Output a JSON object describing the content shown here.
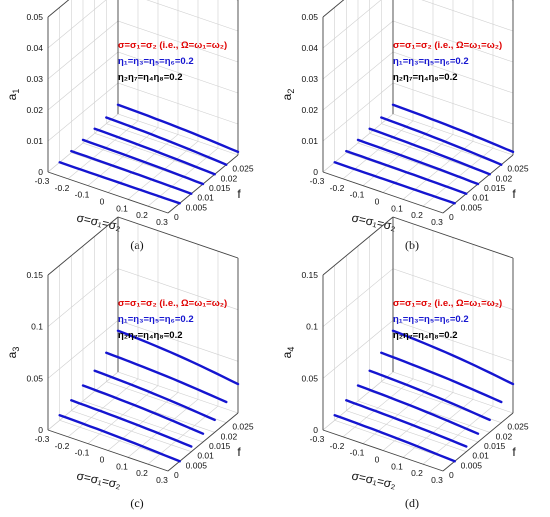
{
  "chart_data": [
    {
      "type": "line",
      "panel_label": "(a)",
      "zlabel": "a",
      "zlabel_sub": "1",
      "xlabel": "σ=σ₁=σ₂",
      "ylabel": "f",
      "xticks": [
        "-0.3",
        "-0.2",
        "-0.1",
        "0",
        "0.1",
        "0.2",
        "0.3"
      ],
      "yticks": [
        "0",
        "0.005",
        "0.01",
        "0.015",
        "0.02",
        "0.025"
      ],
      "zticks": [
        "0",
        "0.01",
        "0.02",
        "0.03",
        "0.04",
        "0.05"
      ],
      "zlim": [
        0,
        0.05
      ],
      "annotations": [
        {
          "text": "σ=σ₁=σ₂ (i.e., Ω=ω₁=ω₂)",
          "color": "#e00000"
        },
        {
          "text": "η₁=η₃=η₅=η₆=0.2",
          "color": "#1515d0"
        },
        {
          "text": "η₂η₇=η₄η₈=0.2",
          "color": "#000000"
        }
      ],
      "series_color": "#1515d0",
      "series": [
        {
          "f": 0.005,
          "x": [
            -0.3,
            0.3
          ],
          "z": [
            0.0,
            0.0
          ]
        },
        {
          "f": 0.01,
          "x": [
            -0.3,
            0.3
          ],
          "z": [
            0.0005,
            0.0
          ]
        },
        {
          "f": 0.015,
          "x": [
            -0.3,
            0.3
          ],
          "z": [
            0.001,
            0.0
          ]
        },
        {
          "f": 0.02,
          "x": [
            -0.3,
            0.3
          ],
          "z": [
            0.0015,
            0.0
          ]
        },
        {
          "f": 0.025,
          "x": [
            -0.3,
            0.3
          ],
          "z": [
            0.002,
            0.0
          ]
        },
        {
          "f": 0.03,
          "x": [
            -0.3,
            0.3
          ],
          "z": [
            0.003,
            0.001
          ]
        }
      ]
    },
    {
      "type": "line",
      "panel_label": "(b)",
      "zlabel": "a",
      "zlabel_sub": "2",
      "xlabel": "σ=σ₁=σ₂",
      "ylabel": "f",
      "xticks": [
        "-0.3",
        "-0.2",
        "-0.1",
        "0",
        "0.1",
        "0.2",
        "0.3"
      ],
      "yticks": [
        "0",
        "0.005",
        "0.01",
        "0.015",
        "0.02",
        "0.025"
      ],
      "zticks": [
        "0",
        "0.01",
        "0.02",
        "0.03",
        "0.04",
        "0.05"
      ],
      "zlim": [
        0,
        0.05
      ],
      "annotations": [
        {
          "text": "σ=σ₁=σ₂ (i.e., Ω=ω₁=ω₂)",
          "color": "#e00000"
        },
        {
          "text": "η₁=η₃=η₅=η₆=0.2",
          "color": "#1515d0"
        },
        {
          "text": "η₂η₇=η₄η₈=0.2",
          "color": "#000000"
        }
      ],
      "series_color": "#1515d0",
      "series": [
        {
          "f": 0.005,
          "x": [
            -0.3,
            0.3
          ],
          "z": [
            0.0,
            0.0
          ]
        },
        {
          "f": 0.01,
          "x": [
            -0.3,
            0.3
          ],
          "z": [
            0.0005,
            0.0
          ]
        },
        {
          "f": 0.015,
          "x": [
            -0.3,
            0.3
          ],
          "z": [
            0.001,
            0.0
          ]
        },
        {
          "f": 0.02,
          "x": [
            -0.3,
            0.3
          ],
          "z": [
            0.0015,
            0.0
          ]
        },
        {
          "f": 0.025,
          "x": [
            -0.3,
            0.3
          ],
          "z": [
            0.002,
            0.0
          ]
        },
        {
          "f": 0.03,
          "x": [
            -0.3,
            0.3
          ],
          "z": [
            0.003,
            0.001
          ]
        }
      ]
    },
    {
      "type": "line",
      "panel_label": "(c)",
      "zlabel": "a",
      "zlabel_sub": "3",
      "xlabel": "σ=σ₁=σ₂",
      "ylabel": "f",
      "xticks": [
        "-0.3",
        "-0.2",
        "-0.1",
        "0",
        "0.1",
        "0.2",
        "0.3"
      ],
      "yticks": [
        "0",
        "0.005",
        "0.01",
        "0.015",
        "0.02",
        "0.025"
      ],
      "zticks": [
        "0",
        "0.05",
        "0.1",
        "0.15"
      ],
      "zlim": [
        0,
        0.15
      ],
      "annotations": [
        {
          "text": "σ=σ₁=σ₂ (i.e., Ω=ω₁=ω₂)",
          "color": "#e00000"
        },
        {
          "text": "η₁=η₃=η₅=η₆=0.2",
          "color": "#1515d0"
        },
        {
          "text": "η₂η₇=η₄η₈=0.2",
          "color": "#000000"
        }
      ],
      "series_color": "#1515d0",
      "series": [
        {
          "f": 0.005,
          "x": [
            -0.3,
            0.3
          ],
          "z": [
            0.005,
            0.0
          ]
        },
        {
          "f": 0.01,
          "x": [
            -0.3,
            0.3
          ],
          "z": [
            0.01,
            0.005
          ]
        },
        {
          "f": 0.015,
          "x": [
            -0.3,
            0.3
          ],
          "z": [
            0.015,
            0.008
          ]
        },
        {
          "f": 0.02,
          "x": [
            -0.3,
            0.3
          ],
          "z": [
            0.02,
            0.012
          ]
        },
        {
          "f": 0.025,
          "x": [
            -0.3,
            0.3
          ],
          "z": [
            0.028,
            0.02
          ]
        },
        {
          "f": 0.03,
          "x": [
            -0.3,
            0.3
          ],
          "z": [
            0.04,
            0.028
          ]
        }
      ]
    },
    {
      "type": "line",
      "panel_label": "(d)",
      "zlabel": "a",
      "zlabel_sub": "4",
      "xlabel": "σ=σ₁=σ₂",
      "ylabel": "f",
      "xticks": [
        "-0.3",
        "-0.2",
        "-0.1",
        "0",
        "0.1",
        "0.2",
        "0.3"
      ],
      "yticks": [
        "0",
        "0.005",
        "0.01",
        "0.015",
        "0.02",
        "0.025"
      ],
      "zticks": [
        "0",
        "0.05",
        "0.1",
        "0.15"
      ],
      "zlim": [
        0,
        0.15
      ],
      "annotations": [
        {
          "text": "σ=σ₁=σ₂ (i.e., Ω=ω₁=ω₂)",
          "color": "#e00000"
        },
        {
          "text": "η₁=η₃=η₅=η₆=0.2",
          "color": "#1515d0"
        },
        {
          "text": "η₂η₇=η₄η₈=0.2",
          "color": "#000000"
        }
      ],
      "series_color": "#1515d0",
      "series": [
        {
          "f": 0.005,
          "x": [
            -0.3,
            0.3
          ],
          "z": [
            0.005,
            0.0
          ]
        },
        {
          "f": 0.01,
          "x": [
            -0.3,
            0.3
          ],
          "z": [
            0.01,
            0.005
          ]
        },
        {
          "f": 0.015,
          "x": [
            -0.3,
            0.3
          ],
          "z": [
            0.015,
            0.008
          ]
        },
        {
          "f": 0.02,
          "x": [
            -0.3,
            0.3
          ],
          "z": [
            0.02,
            0.012
          ]
        },
        {
          "f": 0.025,
          "x": [
            -0.3,
            0.3
          ],
          "z": [
            0.028,
            0.02
          ]
        },
        {
          "f": 0.03,
          "x": [
            -0.3,
            0.3
          ],
          "z": [
            0.04,
            0.028
          ]
        }
      ]
    }
  ]
}
